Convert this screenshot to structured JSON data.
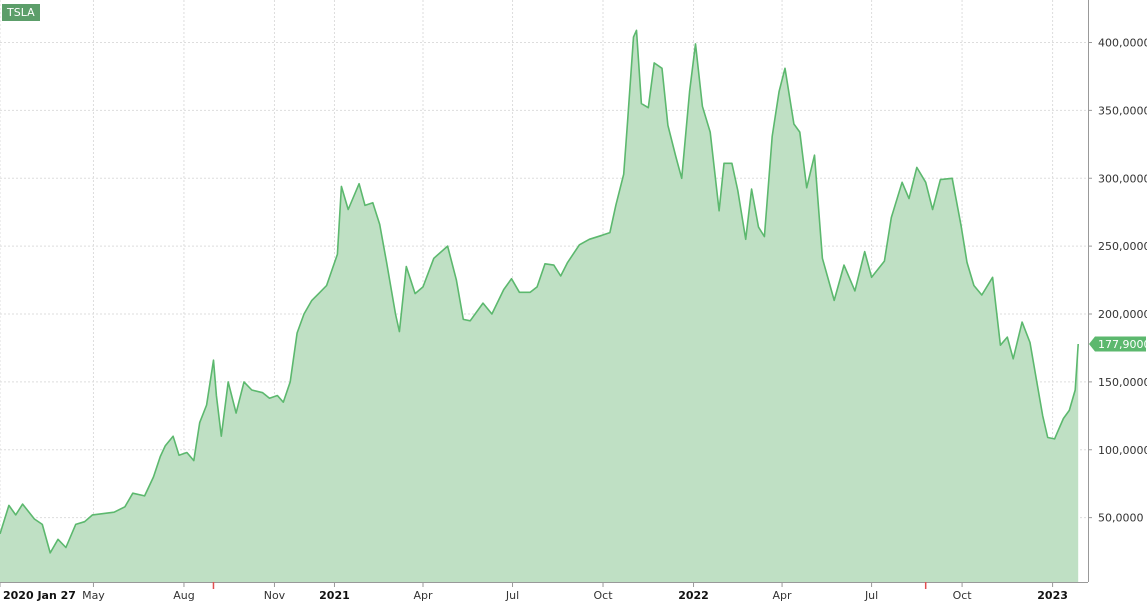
{
  "ticker": "TSLA",
  "colors": {
    "line": "#5cb86e",
    "fill": "#bfe0c4",
    "grid": "#dddddd",
    "badge": "#5c9e6a",
    "last_price_tag": "#5cb86e",
    "axis": "#999999",
    "marker": "#e05050"
  },
  "chart_data": {
    "type": "area",
    "title": "",
    "xlabel": "",
    "ylabel": "",
    "series": [
      {
        "name": "TSLA",
        "points": [
          [
            "2020-01-27",
            38
          ],
          [
            "2020-02-05",
            59
          ],
          [
            "2020-02-12",
            52
          ],
          [
            "2020-02-19",
            60
          ],
          [
            "2020-03-02",
            49
          ],
          [
            "2020-03-10",
            45
          ],
          [
            "2020-03-18",
            24
          ],
          [
            "2020-03-26",
            34
          ],
          [
            "2020-04-03",
            28
          ],
          [
            "2020-04-13",
            45
          ],
          [
            "2020-04-22",
            47
          ],
          [
            "2020-04-30",
            52
          ],
          [
            "2020-05-11",
            53
          ],
          [
            "2020-05-22",
            54
          ],
          [
            "2020-06-02",
            58
          ],
          [
            "2020-06-10",
            68
          ],
          [
            "2020-06-22",
            66
          ],
          [
            "2020-07-01",
            80
          ],
          [
            "2020-07-08",
            95
          ],
          [
            "2020-07-13",
            103
          ],
          [
            "2020-07-21",
            110
          ],
          [
            "2020-07-27",
            96
          ],
          [
            "2020-08-04",
            98
          ],
          [
            "2020-08-11",
            92
          ],
          [
            "2020-08-17",
            120
          ],
          [
            "2020-08-24",
            133
          ],
          [
            "2020-08-31",
            166
          ],
          [
            "2020-09-03",
            140
          ],
          [
            "2020-09-08",
            110
          ],
          [
            "2020-09-15",
            150
          ],
          [
            "2020-09-23",
            127
          ],
          [
            "2020-10-01",
            150
          ],
          [
            "2020-10-09",
            144
          ],
          [
            "2020-10-20",
            142
          ],
          [
            "2020-10-27",
            138
          ],
          [
            "2020-11-04",
            140
          ],
          [
            "2020-11-10",
            135
          ],
          [
            "2020-11-17",
            150
          ],
          [
            "2020-11-24",
            186
          ],
          [
            "2020-12-01",
            200
          ],
          [
            "2020-12-09",
            210
          ],
          [
            "2020-12-16",
            215
          ],
          [
            "2020-12-24",
            221
          ],
          [
            "2021-01-04",
            244
          ],
          [
            "2021-01-08",
            294
          ],
          [
            "2021-01-15",
            277
          ],
          [
            "2021-01-26",
            296
          ],
          [
            "2021-02-01",
            280
          ],
          [
            "2021-02-09",
            282
          ],
          [
            "2021-02-16",
            266
          ],
          [
            "2021-02-23",
            238
          ],
          [
            "2021-03-04",
            200
          ],
          [
            "2021-03-08",
            187
          ],
          [
            "2021-03-15",
            235
          ],
          [
            "2021-03-24",
            215
          ],
          [
            "2021-04-01",
            220
          ],
          [
            "2021-04-12",
            241
          ],
          [
            "2021-04-26",
            250
          ],
          [
            "2021-05-05",
            225
          ],
          [
            "2021-05-12",
            196
          ],
          [
            "2021-05-19",
            195
          ],
          [
            "2021-06-01",
            208
          ],
          [
            "2021-06-10",
            200
          ],
          [
            "2021-06-22",
            218
          ],
          [
            "2021-06-30",
            226
          ],
          [
            "2021-07-08",
            216
          ],
          [
            "2021-07-19",
            216
          ],
          [
            "2021-07-26",
            220
          ],
          [
            "2021-08-03",
            237
          ],
          [
            "2021-08-12",
            236
          ],
          [
            "2021-08-19",
            228
          ],
          [
            "2021-08-26",
            238
          ],
          [
            "2021-09-07",
            251
          ],
          [
            "2021-09-17",
            255
          ],
          [
            "2021-09-30",
            258
          ],
          [
            "2021-10-08",
            260
          ],
          [
            "2021-10-14",
            280
          ],
          [
            "2021-10-22",
            303
          ],
          [
            "2021-10-26",
            342
          ],
          [
            "2021-11-01",
            404
          ],
          [
            "2021-11-04",
            409
          ],
          [
            "2021-11-09",
            355
          ],
          [
            "2021-11-16",
            352
          ],
          [
            "2021-11-22",
            385
          ],
          [
            "2021-11-30",
            381
          ],
          [
            "2021-12-06",
            339
          ],
          [
            "2021-12-14",
            316
          ],
          [
            "2021-12-20",
            300
          ],
          [
            "2021-12-28",
            364
          ],
          [
            "2022-01-03",
            399
          ],
          [
            "2022-01-10",
            353
          ],
          [
            "2022-01-18",
            334
          ],
          [
            "2022-01-27",
            276
          ],
          [
            "2022-02-01",
            311
          ],
          [
            "2022-02-09",
            311
          ],
          [
            "2022-02-15",
            291
          ],
          [
            "2022-02-23",
            255
          ],
          [
            "2022-03-01",
            292
          ],
          [
            "2022-03-08",
            264
          ],
          [
            "2022-03-14",
            257
          ],
          [
            "2022-03-22",
            331
          ],
          [
            "2022-03-29",
            364
          ],
          [
            "2022-04-04",
            381
          ],
          [
            "2022-04-13",
            340
          ],
          [
            "2022-04-19",
            334
          ],
          [
            "2022-04-26",
            293
          ],
          [
            "2022-05-04",
            317
          ],
          [
            "2022-05-12",
            241
          ],
          [
            "2022-05-24",
            210
          ],
          [
            "2022-06-03",
            236
          ],
          [
            "2022-06-14",
            217
          ],
          [
            "2022-06-24",
            246
          ],
          [
            "2022-07-01",
            227
          ],
          [
            "2022-07-14",
            239
          ],
          [
            "2022-07-21",
            271
          ],
          [
            "2022-08-01",
            297
          ],
          [
            "2022-08-08",
            285
          ],
          [
            "2022-08-16",
            308
          ],
          [
            "2022-08-25",
            297
          ],
          [
            "2022-09-01",
            277
          ],
          [
            "2022-09-09",
            299
          ],
          [
            "2022-09-21",
            300
          ],
          [
            "2022-09-30",
            265
          ],
          [
            "2022-10-06",
            238
          ],
          [
            "2022-10-13",
            221
          ],
          [
            "2022-10-21",
            214
          ],
          [
            "2022-11-01",
            227
          ],
          [
            "2022-11-09",
            177
          ],
          [
            "2022-11-16",
            183
          ],
          [
            "2022-11-22",
            167
          ],
          [
            "2022-12-01",
            194
          ],
          [
            "2022-12-09",
            179
          ],
          [
            "2022-12-16",
            150
          ],
          [
            "2022-12-22",
            125
          ],
          [
            "2022-12-27",
            109
          ],
          [
            "2023-01-03",
            108
          ],
          [
            "2023-01-06",
            113
          ],
          [
            "2023-01-12",
            123
          ],
          [
            "2023-01-18",
            129
          ],
          [
            "2023-01-24",
            144
          ],
          [
            "2023-01-27",
            177.9
          ]
        ]
      }
    ],
    "y_axis": {
      "position": "right",
      "min": 0,
      "max": 425,
      "ticks": [
        50,
        100,
        150,
        200,
        250,
        300,
        350,
        400
      ],
      "tick_labels": [
        "50,0000",
        "100,0000",
        "150,0000",
        "200,0000",
        "250,0000",
        "300,0000",
        "350,0000",
        "400,0000"
      ]
    },
    "x_axis": {
      "min": "2020-01-27",
      "max": "2023-02-06",
      "ticks": [
        {
          "date": "2020-01-27",
          "label": "2020 Jan 27",
          "major": true
        },
        {
          "date": "2020-05-01",
          "label": "May",
          "major": false
        },
        {
          "date": "2020-08-01",
          "label": "Aug",
          "major": false
        },
        {
          "date": "2020-11-01",
          "label": "Nov",
          "major": false
        },
        {
          "date": "2021-01-01",
          "label": "2021",
          "major": true
        },
        {
          "date": "2021-04-01",
          "label": "Apr",
          "major": false
        },
        {
          "date": "2021-07-01",
          "label": "Jul",
          "major": false
        },
        {
          "date": "2021-10-01",
          "label": "Oct",
          "major": false
        },
        {
          "date": "2022-01-01",
          "label": "2022",
          "major": true
        },
        {
          "date": "2022-04-01",
          "label": "Apr",
          "major": false
        },
        {
          "date": "2022-07-01",
          "label": "Jul",
          "major": false
        },
        {
          "date": "2022-10-01",
          "label": "Oct",
          "major": false
        },
        {
          "date": "2023-01-01",
          "label": "2023",
          "major": true
        }
      ],
      "event_markers": [
        "2020-08-31",
        "2022-08-25"
      ]
    },
    "last_value": 177.9,
    "last_value_label": "177,9000",
    "grid": true,
    "legend": "none"
  }
}
